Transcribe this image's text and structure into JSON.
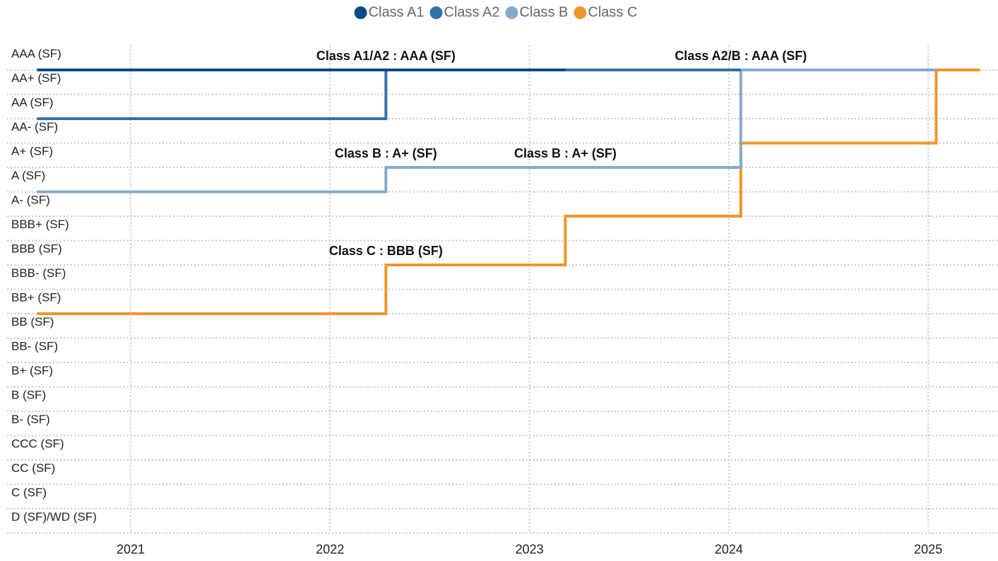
{
  "chart_data": {
    "type": "step",
    "y_categories": [
      "AAA (SF)",
      "AA+ (SF)",
      "AA (SF)",
      "AA- (SF)",
      "A+ (SF)",
      "A (SF)",
      "A- (SF)",
      "BBB+ (SF)",
      "BBB (SF)",
      "BBB- (SF)",
      "BB+ (SF)",
      "BB (SF)",
      "BB- (SF)",
      "B+ (SF)",
      "B (SF)",
      "B- (SF)",
      "CCC (SF)",
      "CC (SF)",
      "C (SF)",
      "D (SF)/WD (SF)"
    ],
    "xlim": [
      2020.38,
      2025.35
    ],
    "xticks": [
      2021,
      2022,
      2023,
      2024,
      2025
    ],
    "grid": true,
    "legend": "top",
    "series": [
      {
        "name": "Class A1",
        "color": "#0b4a8b",
        "x": [
          2020.53,
          2023.18
        ],
        "values": [
          "AAA (SF)",
          "AAA (SF)"
        ]
      },
      {
        "name": "Class A2",
        "color": "#3570a8",
        "x": [
          2020.53,
          2022.28,
          2024.06
        ],
        "values": [
          "AA (SF)",
          "AAA (SF)",
          "AAA (SF)"
        ]
      },
      {
        "name": "Class B",
        "color": "#87a9c9",
        "x": [
          2020.53,
          2022.28,
          2024.06,
          2025.04
        ],
        "values": [
          "A (SF)",
          "A+ (SF)",
          "AAA (SF)",
          "AAA (SF)"
        ]
      },
      {
        "name": "Class C",
        "color": "#f0952b",
        "x": [
          2020.53,
          2022.28,
          2023.18,
          2024.06,
          2025.04,
          2025.26
        ],
        "values": [
          "BB+ (SF)",
          "BBB (SF)",
          "A- (SF)",
          "AA- (SF)",
          "AAA (SF)",
          "AAA (SF)"
        ]
      }
    ],
    "annotations": [
      {
        "text": "Class A1/A2 : AAA (SF)",
        "x": 2022.28,
        "y": "AAA (SF)"
      },
      {
        "text": "Class A2/B : AAA (SF)",
        "x": 2024.06,
        "y": "AAA (SF)"
      },
      {
        "text": "Class B : A+ (SF)",
        "x": 2022.28,
        "y": "A+ (SF)"
      },
      {
        "text": "Class B : A+ (SF)",
        "x": 2023.18,
        "y": "A+ (SF)"
      },
      {
        "text": "Class C : BBB (SF)",
        "x": 2022.28,
        "y": "BBB (SF)"
      }
    ]
  }
}
